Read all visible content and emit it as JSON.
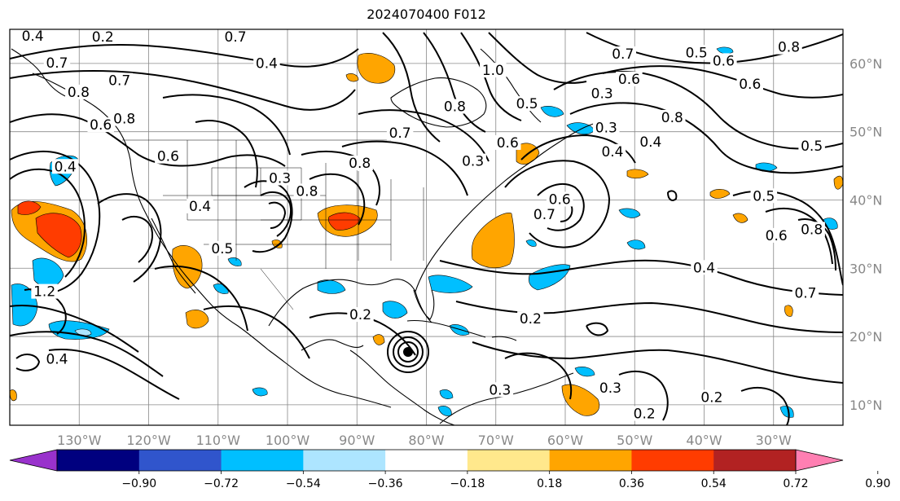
{
  "title": "2024070400 F012",
  "map": {
    "lon_range": [
      -140,
      -20
    ],
    "lat_range": [
      7,
      65
    ],
    "lon_ticks": [
      "130°W",
      "120°W",
      "110°W",
      "100°W",
      "90°W",
      "80°W",
      "70°W",
      "60°W",
      "50°W",
      "40°W",
      "30°W"
    ],
    "lat_ticks": [
      "60°N",
      "50°N",
      "40°N",
      "30°N",
      "20°N",
      "10°N"
    ],
    "grid": true,
    "contour_labels": [
      {
        "text": "0.4",
        "lon": -136.7,
        "lat": 63.9
      },
      {
        "text": "0.2",
        "lon": -126.6,
        "lat": 63.8
      },
      {
        "text": "0.7",
        "lon": -107.5,
        "lat": 63.8
      },
      {
        "text": "0.7",
        "lon": -133.2,
        "lat": 60.0
      },
      {
        "text": "0.4",
        "lon": -103.0,
        "lat": 59.9
      },
      {
        "text": "0.7",
        "lon": -124.2,
        "lat": 57.4
      },
      {
        "text": "0.8",
        "lon": -130.1,
        "lat": 55.7
      },
      {
        "text": "0.8",
        "lon": -123.5,
        "lat": 51.8
      },
      {
        "text": "0.6",
        "lon": -126.9,
        "lat": 50.9
      },
      {
        "text": "0.6",
        "lon": -117.2,
        "lat": 46.3
      },
      {
        "text": "0.4",
        "lon": -132.0,
        "lat": 44.8
      },
      {
        "text": "0.3",
        "lon": -101.1,
        "lat": 43.1
      },
      {
        "text": "0.8",
        "lon": -89.6,
        "lat": 45.3
      },
      {
        "text": "0.8",
        "lon": -97.2,
        "lat": 41.2
      },
      {
        "text": "1.0",
        "lon": -70.4,
        "lat": 58.9
      },
      {
        "text": "0.8",
        "lon": -75.9,
        "lat": 53.6
      },
      {
        "text": "0.7",
        "lon": -83.8,
        "lat": 49.7
      },
      {
        "text": "0.6",
        "lon": -68.3,
        "lat": 48.3
      },
      {
        "text": "0.5",
        "lon": -65.5,
        "lat": 54.0
      },
      {
        "text": "0.3",
        "lon": -54.7,
        "lat": 55.5
      },
      {
        "text": "0.6",
        "lon": -50.8,
        "lat": 57.6
      },
      {
        "text": "0.8",
        "lon": -44.6,
        "lat": 52.0
      },
      {
        "text": "0.7",
        "lon": -51.7,
        "lat": 61.3
      },
      {
        "text": "0.5",
        "lon": -41.1,
        "lat": 61.5
      },
      {
        "text": "0.8",
        "lon": -27.8,
        "lat": 62.3
      },
      {
        "text": "0.6",
        "lon": -37.2,
        "lat": 60.3
      },
      {
        "text": "0.6",
        "lon": -33.4,
        "lat": 56.9
      },
      {
        "text": "0.4",
        "lon": -47.7,
        "lat": 48.4
      },
      {
        "text": "0.5",
        "lon": -24.5,
        "lat": 47.8
      },
      {
        "text": "0.6",
        "lon": -60.8,
        "lat": 40.0
      },
      {
        "text": "0.7",
        "lon": -63.0,
        "lat": 37.8
      },
      {
        "text": "0.5",
        "lon": -31.4,
        "lat": 40.5
      },
      {
        "text": "0.6",
        "lon": -29.6,
        "lat": 34.7
      },
      {
        "text": "0.8",
        "lon": -24.5,
        "lat": 35.6
      },
      {
        "text": "0.4",
        "lon": -40.0,
        "lat": 30.0
      },
      {
        "text": "1.2",
        "lon": -135.0,
        "lat": 26.5
      },
      {
        "text": "0.4",
        "lon": -133.2,
        "lat": 16.6
      },
      {
        "text": "0.2",
        "lon": -89.5,
        "lat": 23.1
      },
      {
        "text": "0.2",
        "lon": -65.0,
        "lat": 22.5
      },
      {
        "text": "0.3",
        "lon": -69.4,
        "lat": 12.1
      },
      {
        "text": "0.3",
        "lon": -53.5,
        "lat": 12.4
      },
      {
        "text": "0.2",
        "lon": -48.6,
        "lat": 8.6
      },
      {
        "text": "0.2",
        "lon": -38.9,
        "lat": 11.0
      },
      {
        "text": "0.7",
        "lon": -25.4,
        "lat": 26.3
      },
      {
        "text": "0.3",
        "lon": -54.1,
        "lat": 50.5
      },
      {
        "text": "0.4",
        "lon": -53.2,
        "lat": 47.0
      },
      {
        "text": "0.3",
        "lon": -73.3,
        "lat": 45.6
      },
      {
        "text": "0.4",
        "lon": -112.6,
        "lat": 39.0
      },
      {
        "text": "0.5",
        "lon": -109.4,
        "lat": 32.8
      }
    ]
  },
  "colorbar": {
    "colors": [
      "#9932cc",
      "#00007f",
      "#3055cc",
      "#00bfff",
      "#ade5ff",
      "#ffffff",
      "#ffe88c",
      "#ffa500",
      "#ff3c00",
      "#b22222",
      "#ff7fb2"
    ],
    "labels": [
      "−0.90",
      "−0.72",
      "−0.54",
      "−0.36",
      "−0.18",
      "0.18",
      "0.36",
      "0.54",
      "0.72",
      "0.90"
    ]
  }
}
